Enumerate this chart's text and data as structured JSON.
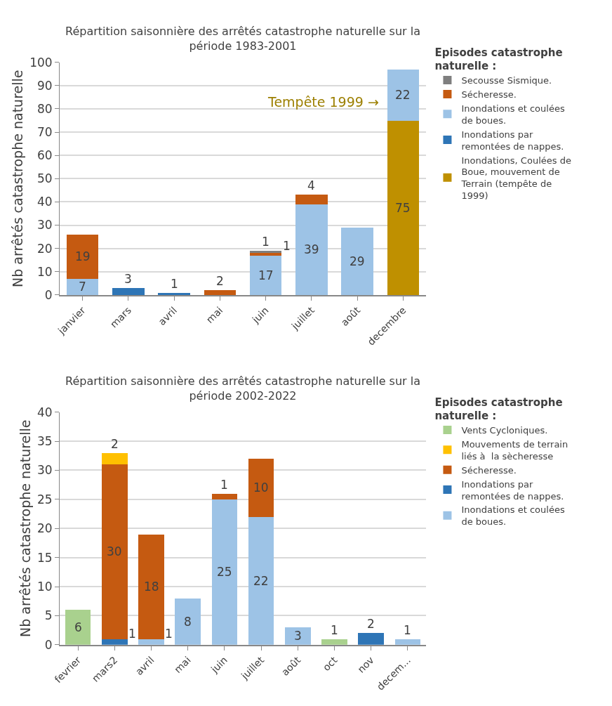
{
  "chart_data": [
    {
      "type": "bar",
      "stacked": true,
      "title": "Répartition saisonnière des arrêtés catastrophe naturelle sur la période 1983-2001",
      "ylabel": "Nb arrêtés catastrophe naturelle",
      "legend_title": "Episodes catastrophe naturelle :",
      "categories": [
        "janvier",
        "mars",
        "avril",
        "mai",
        "juin",
        "juillet",
        "août",
        "decembre"
      ],
      "series": [
        {
          "name": "Inondations, Coulées de Boue, mouvement de Terrain (tempête de 1999)",
          "color": "#bf9000",
          "values": [
            null,
            null,
            null,
            null,
            null,
            null,
            null,
            75
          ]
        },
        {
          "name": "Inondations par remontées de nappes.",
          "color": "#2e75b6",
          "values": [
            null,
            3,
            1,
            null,
            null,
            null,
            null,
            null
          ]
        },
        {
          "name": "Inondations et coulées de boues.",
          "color": "#9dc3e6",
          "values": [
            7,
            null,
            null,
            null,
            17,
            39,
            29,
            22
          ]
        },
        {
          "name": "Sécheresse.",
          "color": "#c55a11",
          "values": [
            19,
            null,
            null,
            2,
            1,
            4,
            null,
            null
          ]
        },
        {
          "name": "Secousse Sismique.",
          "color": "#7f7f7f",
          "values": [
            null,
            null,
            null,
            null,
            1,
            null,
            null,
            null
          ]
        }
      ],
      "ylim": [
        0,
        100
      ],
      "yticks": [
        0,
        10,
        20,
        30,
        40,
        50,
        60,
        70,
        80,
        90,
        100
      ],
      "grid": "y",
      "legend": "right",
      "data_labels": true,
      "annotations": [
        "Tempête 1999 →"
      ]
    },
    {
      "type": "bar",
      "stacked": true,
      "title": "Répartition saisonnière des arrêtés catastrophe naturelle sur la période 2002-2022",
      "ylabel": "Nb arrêtés catastrophe naturelle",
      "legend_title": "Episodes catastrophe naturelle :",
      "categories": [
        "fevrier",
        "mars2",
        "avril",
        "mai",
        "juin",
        "juillet",
        "août",
        "oct",
        "nov",
        "decem..."
      ],
      "series": [
        {
          "name": "Inondations et coulées de boues.",
          "color": "#9dc3e6",
          "values": [
            null,
            null,
            1,
            8,
            25,
            22,
            3,
            null,
            null,
            1
          ]
        },
        {
          "name": "Inondations par remontées de nappes.",
          "color": "#2e75b6",
          "values": [
            null,
            1,
            null,
            null,
            null,
            null,
            null,
            null,
            2,
            null
          ]
        },
        {
          "name": "Sécheresse.",
          "color": "#c55a11",
          "values": [
            null,
            30,
            18,
            null,
            1,
            10,
            null,
            null,
            null,
            null
          ]
        },
        {
          "name": "Mouvements de terrain liés à  la sècheresse",
          "color": "#ffc000",
          "values": [
            null,
            2,
            null,
            null,
            null,
            null,
            null,
            null,
            null,
            null
          ]
        },
        {
          "name": "Vents Cycloniques.",
          "color": "#a9d18e",
          "values": [
            6,
            null,
            null,
            null,
            null,
            null,
            null,
            1,
            null,
            null
          ]
        }
      ],
      "ylim": [
        0,
        40
      ],
      "yticks": [
        0,
        5,
        10,
        15,
        20,
        25,
        30,
        35,
        40
      ],
      "grid": "y",
      "legend": "right",
      "data_labels": true
    }
  ]
}
